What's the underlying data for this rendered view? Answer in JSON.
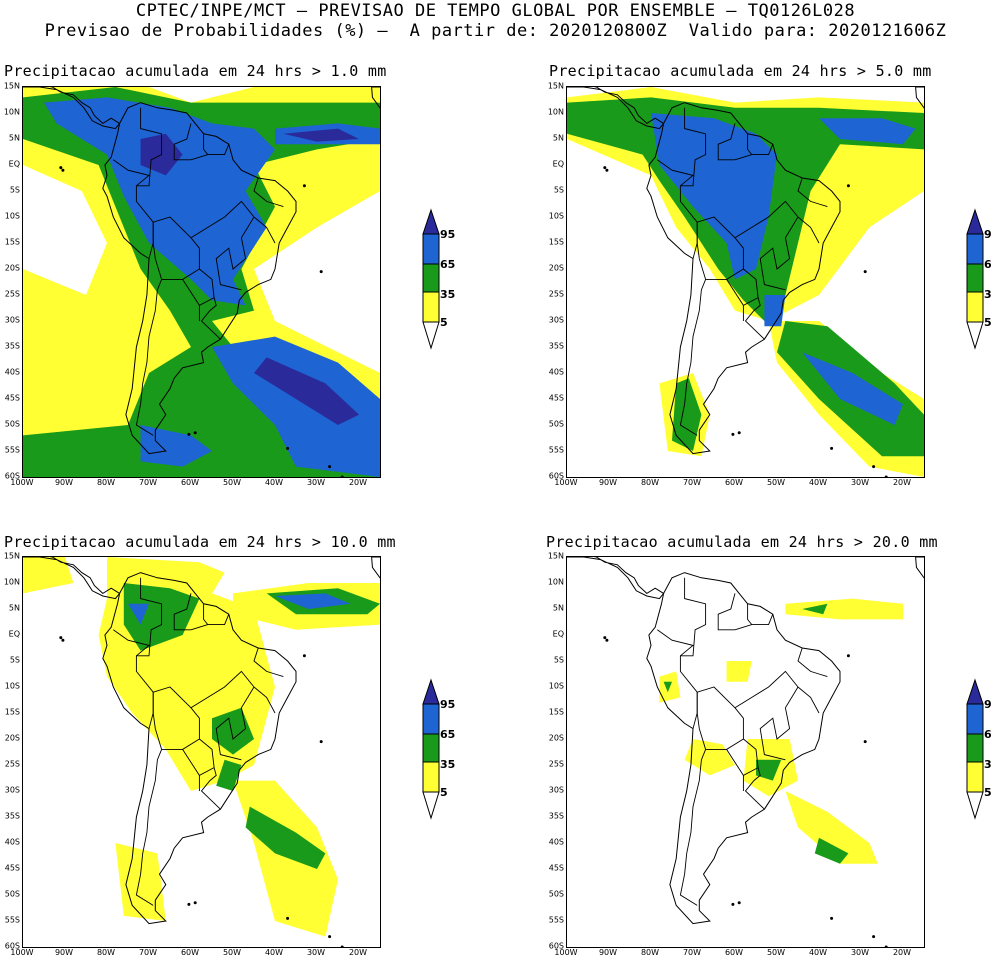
{
  "header": {
    "line1": "CPTEC/INPE/MCT — PREVISAO DE TEMPO GLOBAL POR ENSEMBLE — TQ0126L028",
    "line2": "Previsao de Probabilidades (%) —  A partir de: 2020120800Z  Valido para: 2020121606Z"
  },
  "colors": {
    "yellow": "#ffff33",
    "green": "#1a9a1a",
    "blue": "#1e64d2",
    "darkblue": "#2a2a9a",
    "coast": "#000000"
  },
  "y_ticks": [
    "15N",
    "10N",
    "5N",
    "EQ",
    "5S",
    "10S",
    "15S",
    "20S",
    "25S",
    "30S",
    "35S",
    "40S",
    "45S",
    "50S",
    "55S",
    "60S"
  ],
  "x_ticks": [
    "100W",
    "90W",
    "80W",
    "70W",
    "60W",
    "50W",
    "40W",
    "30W",
    "20W"
  ],
  "legend": {
    "labels": [
      "95",
      "65",
      "35",
      "5"
    ]
  },
  "panels": [
    {
      "title": "Precipitacao acumulada em 24 hrs > 1.0 mm"
    },
    {
      "title": "Precipitacao acumulada em 24 hrs > 5.0 mm"
    },
    {
      "title": "Precipitacao acumulada em 24 hrs > 10.0 mm"
    },
    {
      "title": "Precipitacao acumulada em 24 hrs > 20.0 mm"
    }
  ]
}
